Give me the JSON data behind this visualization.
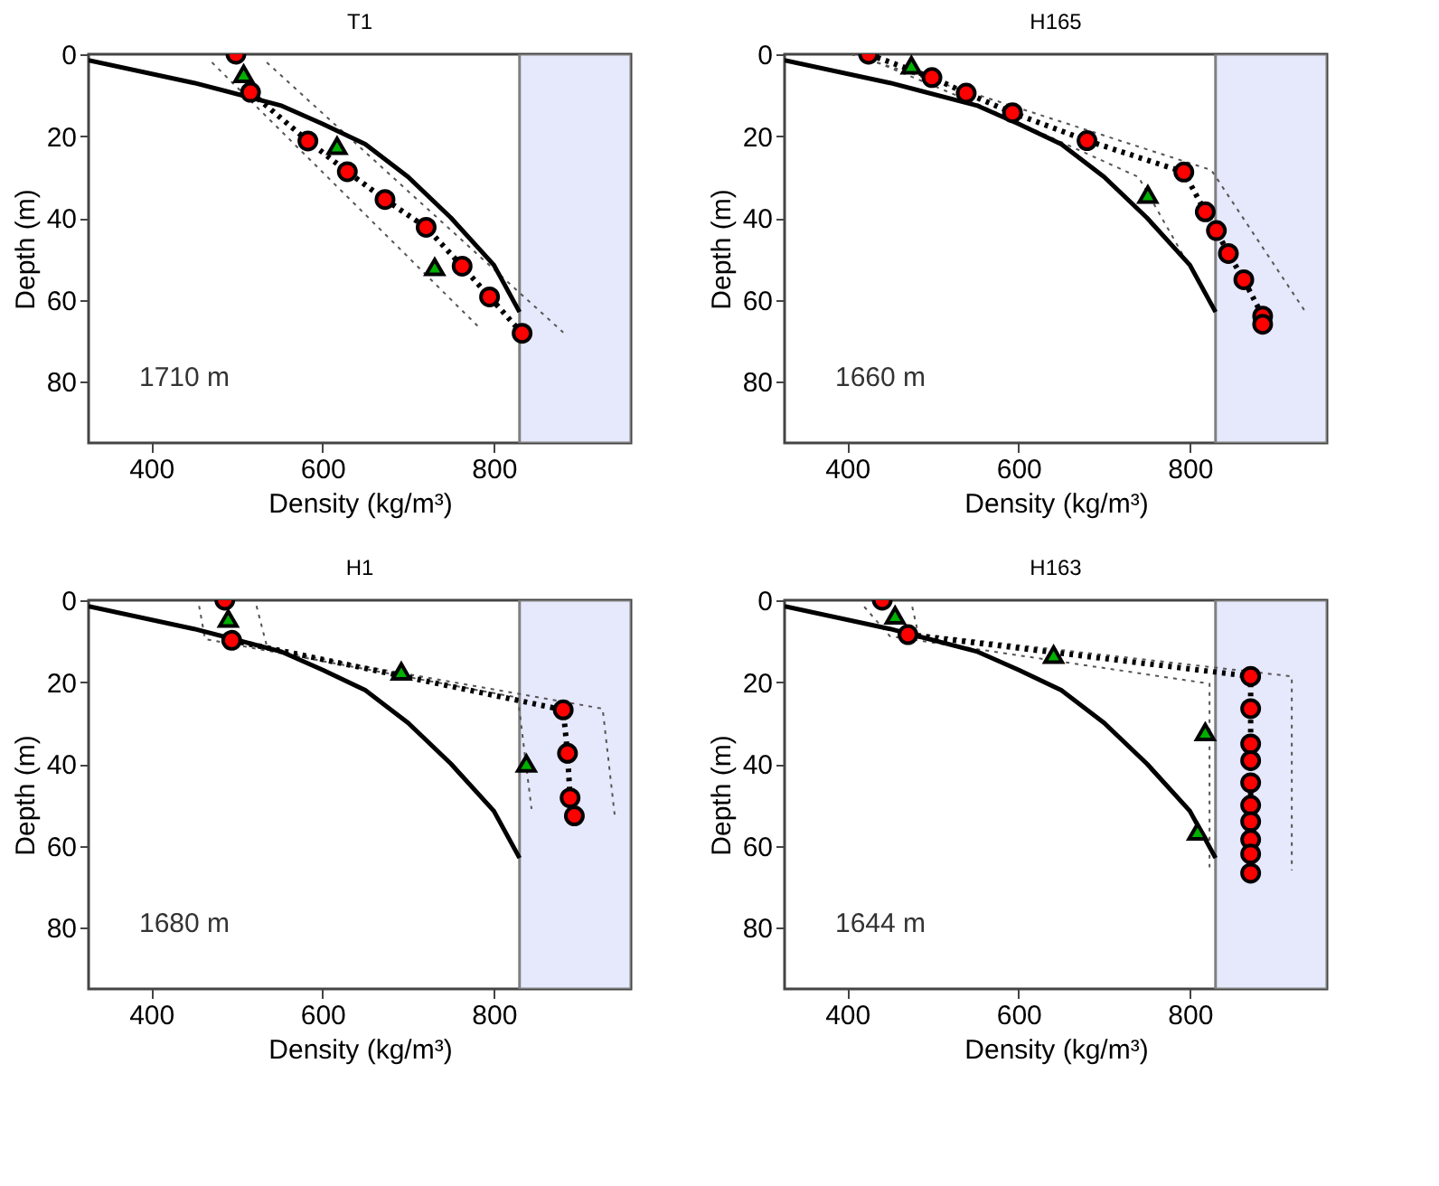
{
  "chart_data": [
    {
      "type": "line",
      "title": "T1",
      "xlabel": "Density (kg/m³)",
      "ylabel": "Depth (m)",
      "annotations": [
        "1710 m"
      ],
      "xlim": [
        327,
        960
      ],
      "ylim": [
        95,
        0
      ],
      "xticks": [
        400,
        600,
        800
      ],
      "yticks": [
        0,
        20,
        40,
        60,
        80
      ],
      "grid": false,
      "bands": [
        {
          "axis": "x",
          "from": 830,
          "to": 960,
          "color": "#e6e8fb"
        }
      ],
      "series": [
        {
          "line_style": "dotted",
          "color": "#555555",
          "x": [
            471,
            781
          ],
          "values": [
            2,
            66.4
          ]
        },
        {
          "line_style": "dotted",
          "color": "#555555",
          "x": [
            535,
            881
          ],
          "values": [
            2,
            68
          ]
        },
        {
          "line_style": "solid",
          "color": "#000000",
          "x": [
            327,
            450,
            551,
            600,
            650,
            700,
            750,
            800,
            830
          ],
          "values": [
            1.5,
            7,
            12.5,
            17,
            22,
            30,
            40,
            51.5,
            63
          ]
        },
        {
          "line_style": "dotted",
          "color": "#000000",
          "x": [
            516,
            583,
            629,
            673,
            721,
            763,
            795,
            833
          ],
          "values": [
            9.3,
            21.2,
            28.7,
            35.5,
            42.3,
            51.8,
            59.3,
            68.2
          ]
        },
        {
          "type": "scatter",
          "marker": "circle",
          "color": "#ff0000",
          "x": [
            583,
            629,
            673,
            763,
            795
          ],
          "values": [
            21.2,
            28.7,
            35.5,
            51.8,
            59.3
          ]
        },
        {
          "type": "scatter",
          "marker": "circle",
          "color": "#ff0000",
          "x": [
            499,
            516,
            721,
            833
          ],
          "values": [
            0,
            9.3,
            42.3,
            68.2
          ]
        },
        {
          "type": "scatter",
          "marker": "triangle",
          "color": "#00b000",
          "x": [
            508,
            617,
            731
          ],
          "values": [
            4.8,
            22.4,
            52
          ]
        }
      ]
    },
    {
      "type": "line",
      "title": "H165",
      "xlabel": "Density (kg/m³)",
      "ylabel": "Depth (m)",
      "annotations": [
        "1660 m"
      ],
      "xlim": [
        327,
        960
      ],
      "ylim": [
        95,
        0
      ],
      "xticks": [
        400,
        600,
        800
      ],
      "yticks": [
        0,
        20,
        40,
        60,
        80
      ],
      "grid": false,
      "bands": [
        {
          "axis": "x",
          "from": 830,
          "to": 960,
          "color": "#e6e8fb"
        }
      ],
      "series": [
        {
          "line_style": "dotted",
          "color": "#555555",
          "x": [
            435,
            550,
            740,
            830
          ],
          "values": [
            2,
            12,
            30,
            63
          ]
        },
        {
          "line_style": "dotted",
          "color": "#555555",
          "x": [
            405,
            825,
            935
          ],
          "values": [
            0,
            28.3,
            63
          ]
        },
        {
          "line_style": "solid",
          "color": "#000000",
          "x": [
            327,
            450,
            551,
            600,
            650,
            700,
            750,
            800,
            830
          ],
          "values": [
            1.5,
            7,
            12.5,
            17,
            22,
            30,
            40,
            51.5,
            63
          ]
        },
        {
          "line_style": "dotted",
          "color": "#000000",
          "x": [
            425,
            499,
            539,
            593,
            680,
            793,
            818,
            831,
            845,
            863,
            885
          ],
          "values": [
            0,
            5.7,
            9.5,
            14.3,
            21.1,
            28.8,
            38.5,
            43.1,
            48.7,
            55.1,
            64
          ]
        },
        {
          "type": "scatter",
          "marker": "circle",
          "color": "#ff0000",
          "x": [
            425,
            499,
            793,
            885
          ],
          "values": [
            0,
            5.7,
            28.8,
            64
          ]
        },
        {
          "type": "scatter",
          "marker": "circle",
          "color": "#ff0000",
          "x": [
            539,
            593,
            680,
            818,
            831,
            845,
            863,
            885
          ],
          "values": [
            9.5,
            14.3,
            21.1,
            38.5,
            43.1,
            48.7,
            55.1,
            66
          ]
        },
        {
          "type": "scatter",
          "marker": "triangle",
          "color": "#00b000",
          "x": [
            475,
            751
          ],
          "values": [
            2.7,
            34.3
          ]
        }
      ]
    },
    {
      "type": "line",
      "title": "H1",
      "xlabel": "Density (kg/m³)",
      "ylabel": "Depth (m)",
      "annotations": [
        "1680 m"
      ],
      "xlim": [
        327,
        960
      ],
      "ylim": [
        95,
        0
      ],
      "xticks": [
        400,
        600,
        800
      ],
      "yticks": [
        0,
        20,
        40,
        60,
        80
      ],
      "grid": false,
      "bands": [
        {
          "axis": "x",
          "from": 830,
          "to": 960,
          "color": "#e6e8fb"
        }
      ],
      "series": [
        {
          "line_style": "dotted",
          "color": "#555555",
          "x": [
            456,
            463,
            828,
            844
          ],
          "values": [
            1.4,
            9.5,
            23.8,
            51
          ]
        },
        {
          "line_style": "dotted",
          "color": "#555555",
          "x": [
            523,
            536,
            927,
            941
          ],
          "values": [
            1.4,
            12,
            26.5,
            52.4
          ]
        },
        {
          "line_style": "solid",
          "color": "#000000",
          "x": [
            327,
            450,
            551,
            600,
            650,
            700,
            750,
            800,
            830
          ],
          "values": [
            1.5,
            7,
            12.5,
            17,
            22,
            30,
            40,
            51.5,
            63
          ]
        },
        {
          "line_style": "dotted",
          "color": "#000000",
          "x": [
            494,
            881,
            886,
            889,
            894
          ],
          "values": [
            9.8,
            26.8,
            37.4,
            48.3,
            52.7
          ]
        },
        {
          "type": "scatter",
          "marker": "circle",
          "color": "#ff0000",
          "x": [
            886,
            889
          ],
          "values": [
            37.4,
            48.3
          ]
        },
        {
          "type": "scatter",
          "marker": "circle",
          "color": "#ff0000",
          "x": [
            486,
            494,
            881,
            894
          ],
          "values": [
            0,
            9.8,
            26.8,
            52.7
          ]
        },
        {
          "type": "scatter",
          "marker": "triangle",
          "color": "#00b000",
          "x": [
            490,
            692,
            838
          ],
          "values": [
            4.5,
            17.4,
            39.9
          ]
        }
      ]
    },
    {
      "type": "line",
      "title": "H163",
      "xlabel": "Density (kg/m³)",
      "ylabel": "Depth (m)",
      "annotations": [
        "1644 m"
      ],
      "xlim": [
        327,
        960
      ],
      "ylim": [
        95,
        0
      ],
      "xticks": [
        400,
        600,
        800
      ],
      "yticks": [
        0,
        20,
        40,
        60,
        80
      ],
      "grid": false,
      "bands": [
        {
          "axis": "x",
          "from": 830,
          "to": 960,
          "color": "#e6e8fb"
        }
      ],
      "series": [
        {
          "line_style": "dotted",
          "color": "#555555",
          "x": [
            420,
            450,
            823,
            823
          ],
          "values": [
            1.6,
            8.8,
            20.4,
            65.3
          ]
        },
        {
          "line_style": "dotted",
          "color": "#555555",
          "x": [
            476,
            483,
            919,
            919
          ],
          "values": [
            1.6,
            8.2,
            18.6,
            66
          ]
        },
        {
          "line_style": "solid",
          "color": "#000000",
          "x": [
            327,
            450,
            551,
            600,
            650,
            700,
            750,
            800,
            830
          ],
          "values": [
            1.5,
            7,
            12.5,
            17,
            22,
            30,
            40,
            51.5,
            63
          ]
        },
        {
          "line_style": "dotted",
          "color": "#000000",
          "x": [
            471,
            871,
            871,
            871,
            871,
            871,
            871,
            871,
            871,
            871,
            871,
            871
          ],
          "values": [
            8.4,
            18.6,
            26.5,
            35.1,
            39.2,
            44.6,
            50.1,
            54.1,
            58.5,
            62,
            65.7,
            66.7
          ]
        },
        {
          "type": "scatter",
          "marker": "circle",
          "color": "#ff0000",
          "x": [
            871,
            871,
            871,
            871,
            871,
            871,
            871,
            871
          ],
          "values": [
            26.5,
            35.1,
            39.2,
            44.6,
            50.1,
            54.1,
            58.5,
            62
          ]
        },
        {
          "type": "scatter",
          "marker": "circle",
          "color": "#ff0000",
          "x": [
            441,
            471,
            871,
            871
          ],
          "values": [
            0,
            8.4,
            18.6,
            66.7
          ]
        },
        {
          "type": "scatter",
          "marker": "triangle",
          "color": "#00b000",
          "x": [
            456,
            641,
            818,
            809
          ],
          "values": [
            3.7,
            13.3,
            32.2,
            56.5
          ]
        }
      ]
    }
  ]
}
